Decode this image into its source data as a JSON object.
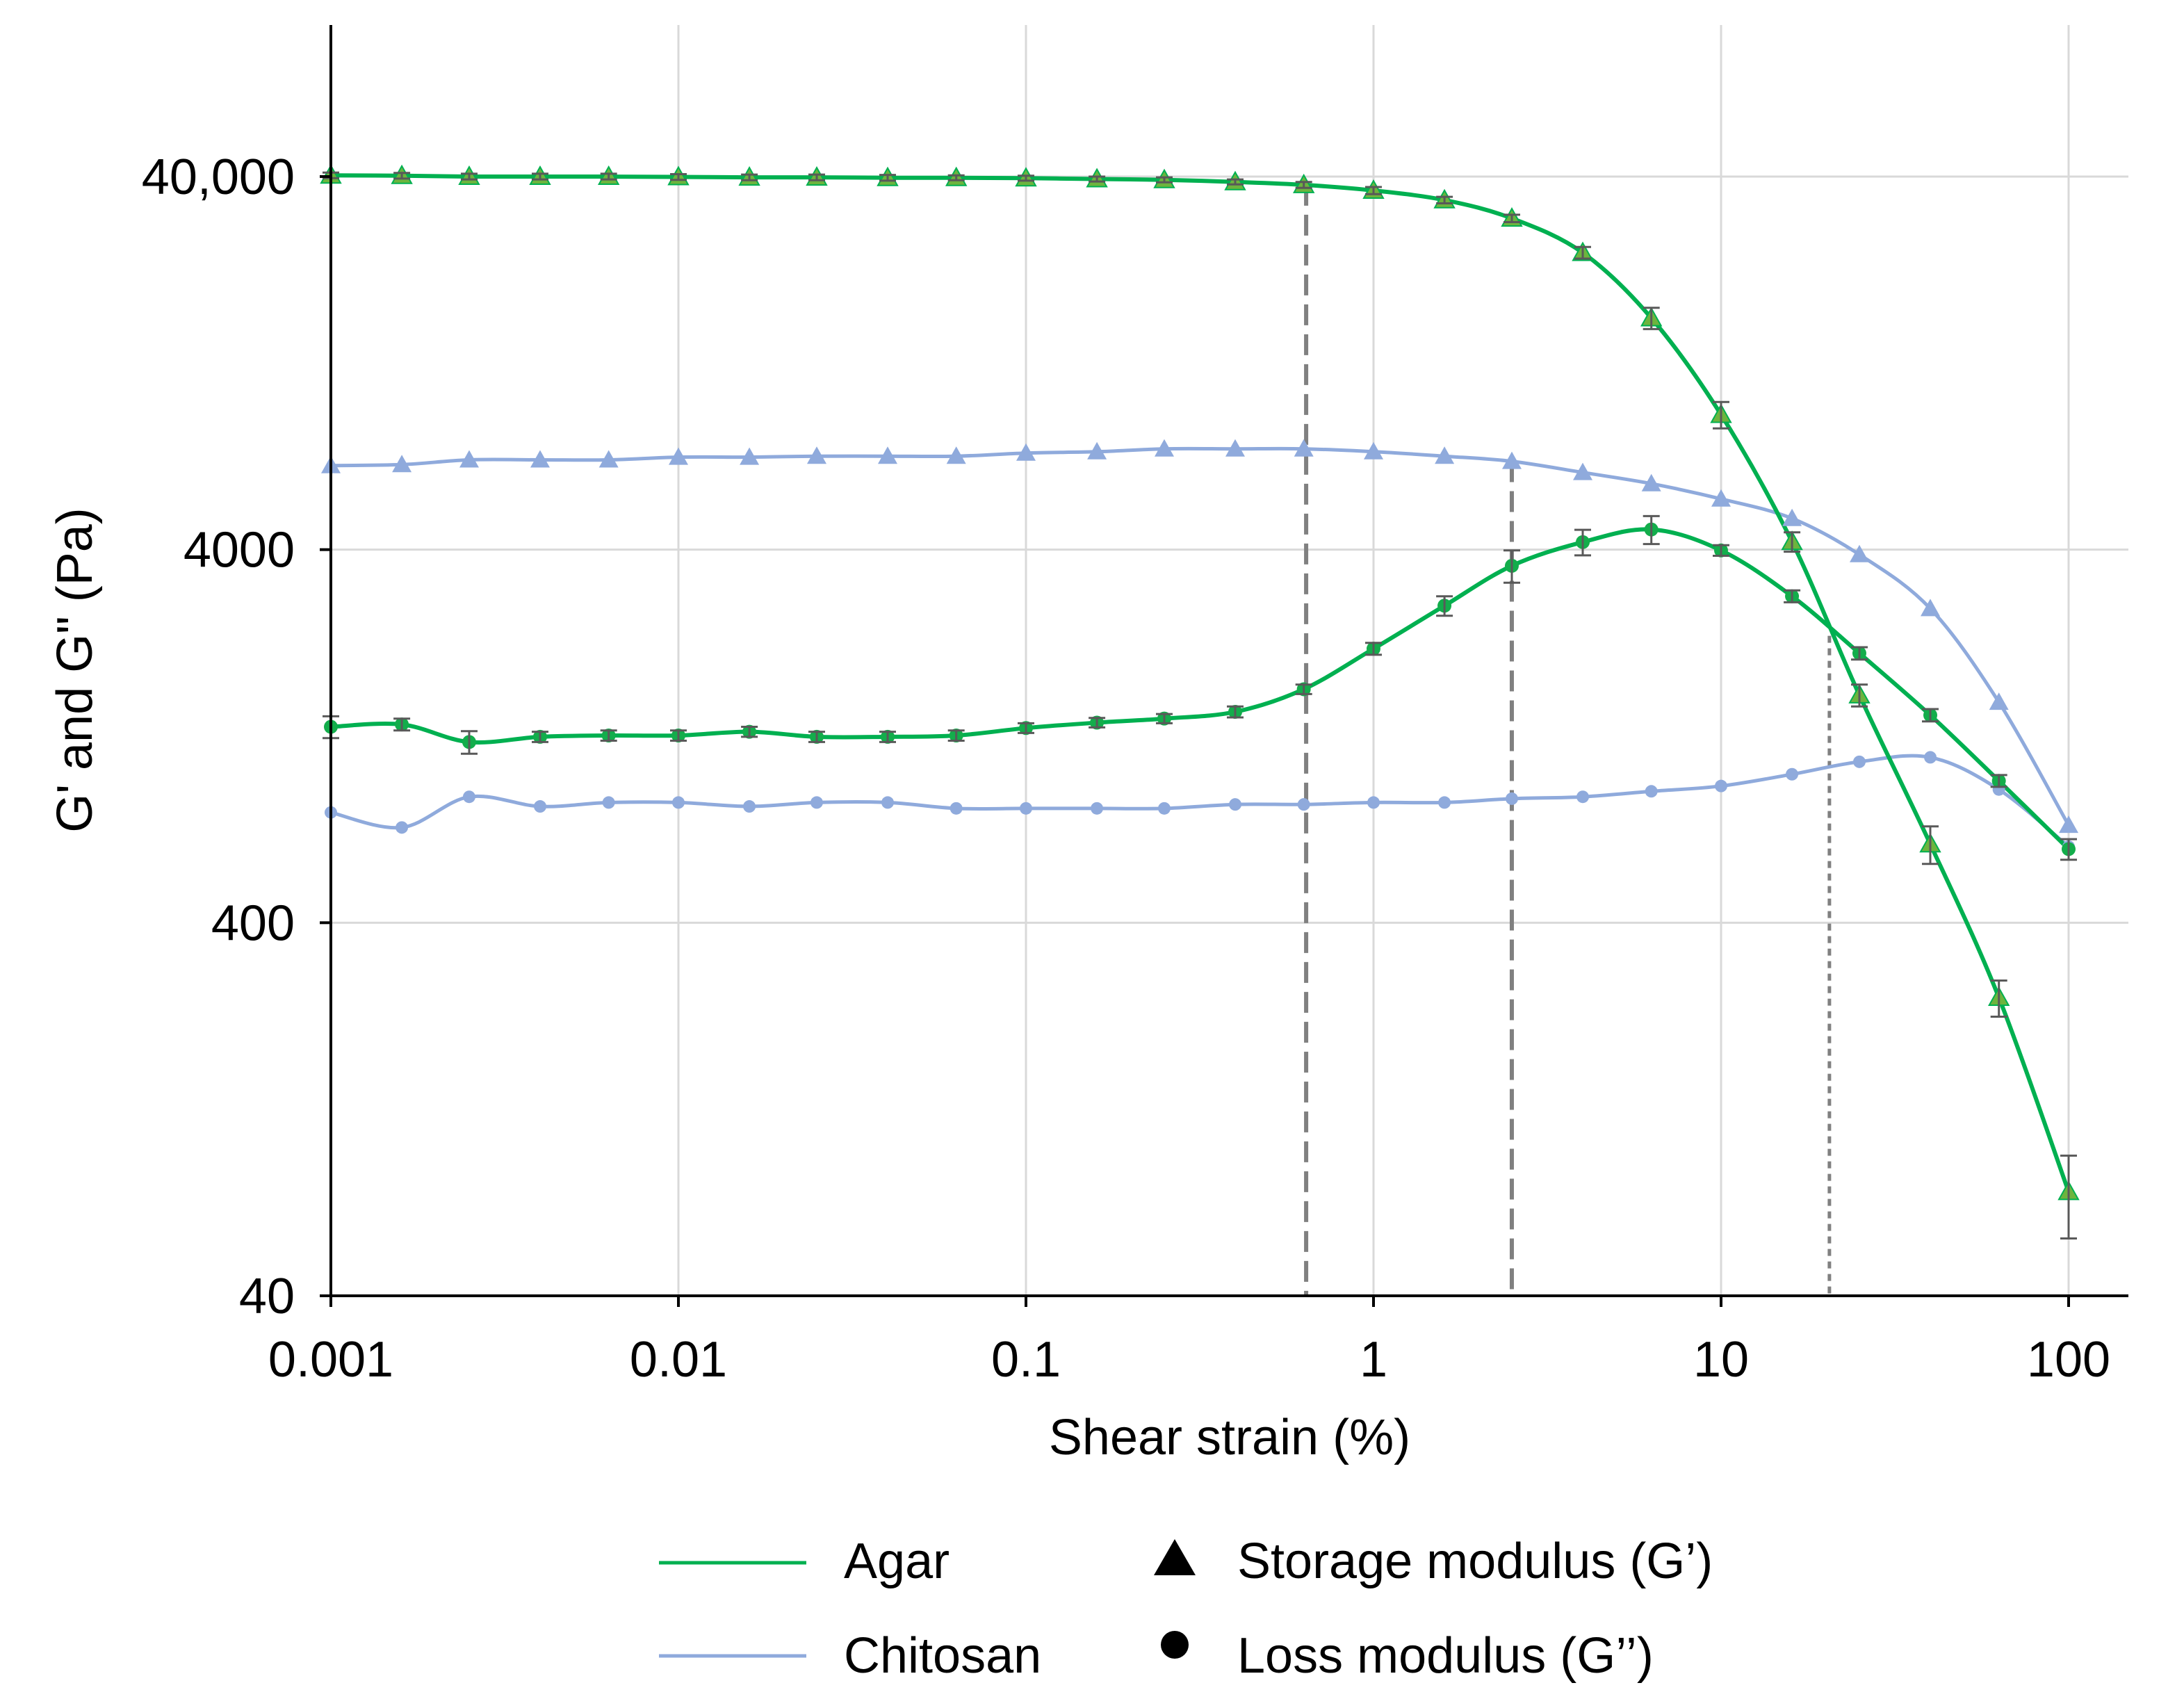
{
  "chart_data": {
    "type": "line",
    "xlabel": "Shear strain (%)",
    "ylabel": "G' and G\" (Pa)",
    "xlim": [
      0.001,
      148.6
    ],
    "ylim": [
      40,
      101900
    ],
    "x_ticks": [
      0.001,
      0.01,
      0.1,
      1,
      10,
      100
    ],
    "x_tick_labels": [
      "0.001",
      "0.01",
      "0.1",
      "1",
      "10",
      "100"
    ],
    "y_ticks": [
      40,
      400,
      4000,
      40000
    ],
    "y_tick_labels": [
      "40",
      "400",
      "4000",
      "40,000"
    ],
    "grid": true,
    "x": [
      0.001,
      0.0016,
      0.0025,
      0.004,
      0.0063,
      0.01,
      0.016,
      0.025,
      0.04,
      0.063,
      0.1,
      0.16,
      0.25,
      0.4,
      0.63,
      1,
      1.6,
      2.5,
      4,
      6.3,
      10,
      16,
      25,
      40,
      63,
      100
    ],
    "materials": [
      {
        "name": "Agar",
        "color": "#00B050"
      },
      {
        "name": "Chitosan",
        "color": "#8FAADC"
      }
    ],
    "moduli": [
      {
        "name": "Storage modulus (G’)",
        "marker": "triangle"
      },
      {
        "name": "Loss modulus (G’’)",
        "marker": "circle"
      }
    ],
    "series": [
      {
        "material": 0,
        "modulus": 0,
        "marker_color": "#6DB43E",
        "values": [
          40300,
          40200,
          40000,
          40000,
          40000,
          39900,
          39800,
          39800,
          39700,
          39700,
          39600,
          39400,
          39200,
          38700,
          38000,
          36700,
          34600,
          30900,
          25000,
          16700,
          9200,
          4200,
          1630,
          650,
          252,
          76
        ],
        "err": [
          700,
          700,
          700,
          700,
          700,
          700,
          700,
          700,
          700,
          600,
          600,
          600,
          600,
          600,
          700,
          800,
          700,
          700,
          900,
          1100,
          750,
          250,
          110,
          75,
          28,
          19
        ]
      },
      {
        "material": 0,
        "modulus": 1,
        "marker_color": "#13AD4B",
        "values": [
          1340,
          1360,
          1220,
          1260,
          1270,
          1270,
          1300,
          1260,
          1260,
          1270,
          1330,
          1375,
          1410,
          1470,
          1690,
          2170,
          2830,
          3620,
          4190,
          4530,
          3980,
          3000,
          2110,
          1440,
          960,
          630
        ],
        "err": [
          90,
          50,
          85,
          40,
          40,
          40,
          40,
          40,
          40,
          40,
          40,
          40,
          40,
          50,
          50,
          80,
          170,
          360,
          330,
          390,
          130,
          110,
          80,
          55,
          35,
          40
        ]
      },
      {
        "material": 1,
        "modulus": 0,
        "marker_color": "#8FAADC",
        "values": [
          6720,
          6760,
          6960,
          6960,
          6960,
          7080,
          7080,
          7120,
          7120,
          7120,
          7260,
          7320,
          7450,
          7450,
          7450,
          7320,
          7120,
          6900,
          6440,
          6010,
          5470,
          4850,
          3880,
          2780,
          1560,
          730
        ]
      },
      {
        "material": 1,
        "modulus": 1,
        "marker_color": "#8FAADC",
        "values": [
          790,
          720,
          870,
          820,
          840,
          840,
          820,
          840,
          840,
          810,
          810,
          810,
          810,
          830,
          830,
          840,
          840,
          860,
          870,
          900,
          930,
          1000,
          1080,
          1110,
          910,
          640
        ]
      }
    ],
    "reference_lines": [
      {
        "x": 0.64,
        "y_from": 38000,
        "style": "dashed",
        "color": "#808080"
      },
      {
        "x": 2.5,
        "y_from": 6900,
        "style": "dashed",
        "color": "#808080"
      },
      {
        "x": 20.5,
        "y_from": 2350,
        "style": "dotted",
        "color": "#808080"
      }
    ]
  }
}
